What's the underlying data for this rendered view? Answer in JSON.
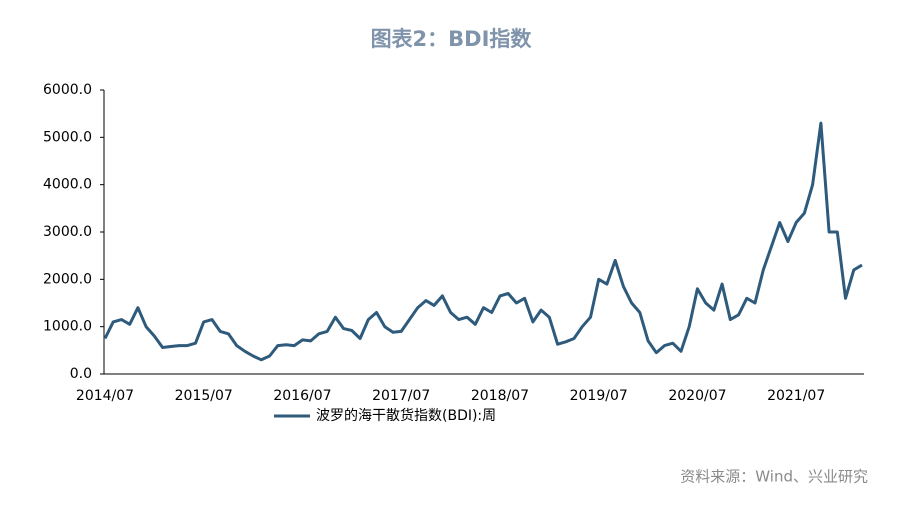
{
  "chart_data": {
    "type": "line",
    "title": "图表2：BDI指数",
    "source": "资料来源：Wind、兴业研究",
    "categories": [
      "2014/07",
      null,
      null,
      null,
      null,
      null,
      null,
      null,
      null,
      null,
      null,
      null,
      "2015/07",
      null,
      null,
      null,
      null,
      null,
      null,
      null,
      null,
      null,
      null,
      null,
      "2016/07",
      null,
      null,
      null,
      null,
      null,
      null,
      null,
      null,
      null,
      null,
      null,
      "2017/07",
      null,
      null,
      null,
      null,
      null,
      null,
      null,
      null,
      null,
      null,
      null,
      "2018/07",
      null,
      null,
      null,
      null,
      null,
      null,
      null,
      null,
      null,
      null,
      null,
      "2019/07",
      null,
      null,
      null,
      null,
      null,
      null,
      null,
      null,
      null,
      null,
      null,
      "2020/07",
      null,
      null,
      null,
      null,
      null,
      null,
      null,
      null,
      null,
      null,
      null,
      "2021/07",
      null,
      null,
      null,
      null,
      null,
      null,
      null,
      null
    ],
    "series": [
      {
        "name": "波罗的海干散货指数(BDI):周",
        "color": "#2e5a7c",
        "values": [
          750,
          1100,
          1150,
          1050,
          1400,
          1000,
          800,
          560,
          580,
          600,
          600,
          650,
          1100,
          1150,
          900,
          850,
          600,
          480,
          380,
          300,
          380,
          600,
          620,
          600,
          720,
          700,
          850,
          900,
          1200,
          960,
          920,
          750,
          1150,
          1300,
          1000,
          880,
          900,
          1150,
          1400,
          1550,
          1450,
          1650,
          1300,
          1150,
          1200,
          1050,
          1400,
          1300,
          1650,
          1700,
          1500,
          1600,
          1100,
          1350,
          1200,
          630,
          680,
          750,
          1000,
          1200,
          2000,
          1900,
          2400,
          1850,
          1500,
          1300,
          700,
          450,
          600,
          650,
          480,
          1000,
          1800,
          1500,
          1350,
          1900,
          1150,
          1250,
          1600,
          1500,
          2200,
          2700,
          3200,
          2800,
          3200,
          3400,
          4000,
          5300,
          3000,
          3000,
          1600,
          2200,
          2300
        ]
      }
    ],
    "ylim": [
      0,
      6000
    ],
    "yticks": [
      {
        "value": 0,
        "label": "0.0"
      },
      {
        "value": 1000,
        "label": "1000.0"
      },
      {
        "value": 2000,
        "label": "2000.0"
      },
      {
        "value": 3000,
        "label": "3000.0"
      },
      {
        "value": 4000,
        "label": "4000.0"
      },
      {
        "value": 5000,
        "label": "5000.0"
      },
      {
        "value": 6000,
        "label": "6000.0"
      }
    ],
    "grid": false
  }
}
